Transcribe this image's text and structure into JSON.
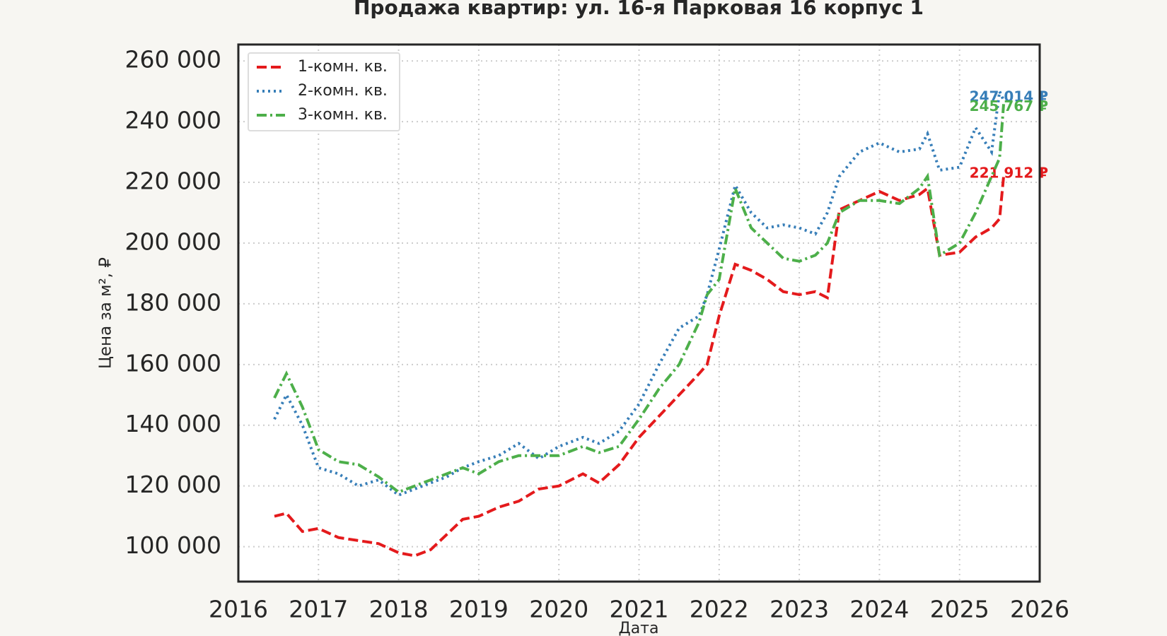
{
  "chart_data": {
    "type": "line",
    "title": "Продажа квартир: ул. 16-я Парковая 16 корпус 1",
    "xlabel": "Дата",
    "ylabel": "Цена за м², ₽",
    "x": [
      2016.45,
      2016.6,
      2016.8,
      2017.0,
      2017.25,
      2017.5,
      2017.75,
      2018.0,
      2018.2,
      2018.4,
      2018.6,
      2018.8,
      2019.0,
      2019.25,
      2019.5,
      2019.75,
      2020.0,
      2020.3,
      2020.5,
      2020.75,
      2021.0,
      2021.25,
      2021.5,
      2021.75,
      2021.85,
      2022.0,
      2022.2,
      2022.4,
      2022.6,
      2022.8,
      2023.0,
      2023.2,
      2023.35,
      2023.5,
      2023.75,
      2024.0,
      2024.25,
      2024.5,
      2024.6,
      2024.75,
      2025.0,
      2025.2,
      2025.4,
      2025.5,
      2025.55
    ],
    "series": [
      {
        "name": "1-комн. кв.",
        "color": "#e41a1c",
        "linestyle": "dashed",
        "values": [
          110000,
          111000,
          105000,
          106000,
          103000,
          102000,
          101000,
          98000,
          97000,
          99000,
          104000,
          109000,
          110000,
          113000,
          115000,
          119000,
          120000,
          124000,
          121000,
          127000,
          136000,
          143000,
          150000,
          157000,
          160000,
          176000,
          193000,
          191000,
          188000,
          184000,
          183000,
          184000,
          182000,
          211000,
          214000,
          217000,
          214000,
          216000,
          218000,
          196000,
          197000,
          202000,
          205000,
          208000,
          221912
        ],
        "value_labels": [
          null,
          null,
          null,
          null,
          null,
          null,
          null,
          null,
          null,
          null,
          null,
          null,
          null,
          null,
          null,
          null,
          null,
          null,
          null,
          null,
          null,
          null,
          null,
          null,
          null,
          null,
          null,
          null,
          null,
          null,
          null,
          null,
          null,
          null,
          null,
          null,
          null,
          null,
          null,
          null,
          null,
          null,
          null,
          null,
          "221 912 ₽"
        ]
      },
      {
        "name": "2-комн. кв.",
        "color": "#377eb8",
        "linestyle": "dotted",
        "values": [
          142000,
          150000,
          140000,
          126000,
          124000,
          120000,
          122000,
          117000,
          119000,
          121000,
          123000,
          126000,
          128000,
          130000,
          134000,
          129000,
          133000,
          136000,
          134000,
          138000,
          147000,
          160000,
          172000,
          176000,
          183000,
          198000,
          219000,
          210000,
          205000,
          206000,
          205000,
          203000,
          210000,
          222000,
          230000,
          233000,
          230000,
          231000,
          236000,
          224000,
          225000,
          238000,
          230000,
          250000,
          247014
        ],
        "value_labels": [
          null,
          null,
          null,
          null,
          null,
          null,
          null,
          null,
          null,
          null,
          null,
          null,
          null,
          null,
          null,
          null,
          null,
          null,
          null,
          null,
          null,
          null,
          null,
          null,
          null,
          null,
          null,
          null,
          null,
          null,
          null,
          null,
          null,
          null,
          null,
          null,
          null,
          null,
          null,
          null,
          null,
          null,
          null,
          null,
          "247 014 ₽"
        ]
      },
      {
        "name": "3-комн. кв.",
        "color": "#4daf4a",
        "linestyle": "dashdot",
        "values": [
          149000,
          157000,
          146000,
          132000,
          128000,
          127000,
          123000,
          118000,
          120000,
          122000,
          124000,
          126000,
          124000,
          128000,
          130000,
          130000,
          130000,
          133000,
          131000,
          133000,
          142000,
          152000,
          160000,
          174000,
          183000,
          188000,
          218000,
          205000,
          200000,
          195000,
          194000,
          196000,
          200000,
          210000,
          214000,
          214000,
          213000,
          218000,
          222000,
          196000,
          200000,
          210000,
          222000,
          228000,
          245767
        ],
        "value_labels": [
          null,
          null,
          null,
          null,
          null,
          null,
          null,
          null,
          null,
          null,
          null,
          null,
          null,
          null,
          null,
          null,
          null,
          null,
          null,
          null,
          null,
          null,
          null,
          null,
          null,
          null,
          null,
          null,
          null,
          null,
          null,
          null,
          null,
          null,
          null,
          null,
          null,
          null,
          null,
          null,
          null,
          null,
          null,
          null,
          "245 767 ₽"
        ]
      }
    ],
    "xlim": [
      2016,
      2026
    ],
    "xticks": [
      2016,
      2017,
      2018,
      2019,
      2020,
      2021,
      2022,
      2023,
      2024,
      2025,
      2026
    ],
    "ylim": [
      88500,
      265400
    ],
    "yticks": [
      {
        "value": 100000,
        "label": "100 000"
      },
      {
        "value": 120000,
        "label": "120 000"
      },
      {
        "value": 140000,
        "label": "140 000"
      },
      {
        "value": 160000,
        "label": "160 000"
      },
      {
        "value": 180000,
        "label": "180 000"
      },
      {
        "value": 200000,
        "label": "200 000"
      },
      {
        "value": 220000,
        "label": "220 000"
      },
      {
        "value": 240000,
        "label": "240 000"
      },
      {
        "value": 260000,
        "label": "260 000"
      }
    ],
    "grid": true,
    "legend": "upper left"
  }
}
